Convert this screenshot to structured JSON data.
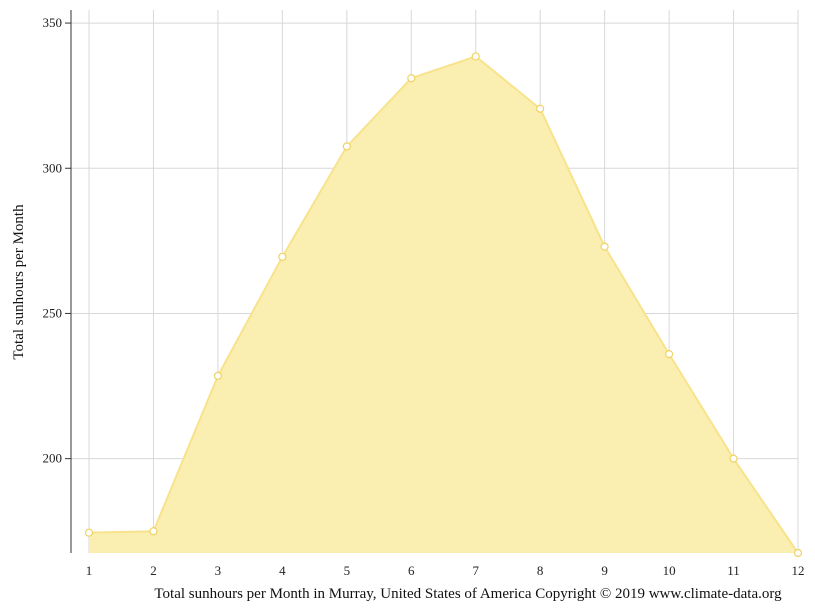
{
  "chart_data": {
    "type": "area",
    "x": [
      1,
      2,
      3,
      4,
      5,
      6,
      7,
      8,
      9,
      10,
      11,
      12
    ],
    "series": [
      {
        "values": [
          174.5,
          175,
          228.5,
          269.5,
          307.5,
          331,
          338.5,
          320.5,
          273,
          236,
          200,
          167.5
        ]
      }
    ],
    "ylabel": "Total sunhours per Month",
    "caption": "Total sunhours per Month in Murray, United States of America Copyright © 2019 www.climate-data.org",
    "ylim": [
      167.5,
      354.5
    ],
    "xlim": [
      1,
      12
    ],
    "yticks": [
      200,
      250,
      300,
      350
    ],
    "xticks": [
      1,
      2,
      3,
      4,
      5,
      6,
      7,
      8,
      9,
      10,
      11,
      12
    ],
    "grid": true,
    "colors": {
      "fill": "#faefb0",
      "line": "#f8e38c",
      "marker_stroke": "#f0d264",
      "grid": "#d8d8d8",
      "axis": "#333333"
    }
  }
}
